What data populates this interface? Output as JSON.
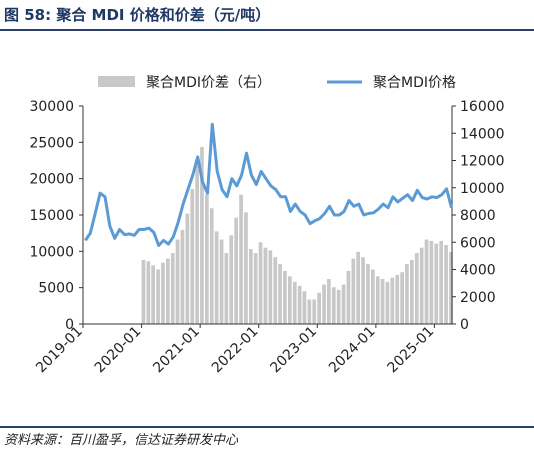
{
  "figure": {
    "title": "图 58:  聚合 MDI 价格和价差（元/吨）",
    "source": "资料来源：百川盈孚，信达证券研发中心"
  },
  "chart_data": {
    "type": "bar+line",
    "legend_position": "top",
    "grid": false,
    "x_ticks": [
      "2019-01",
      "2020-01",
      "2021-01",
      "2022-01",
      "2023-01",
      "2024-01",
      "2025-01"
    ],
    "x_range": [
      "2019-01",
      "2025-04"
    ],
    "y_left": {
      "label": "",
      "lim": [
        0,
        30000
      ],
      "ticks": [
        "0",
        "5000",
        "10000",
        "15000",
        "20000",
        "25000",
        "30000"
      ]
    },
    "y_right": {
      "label": "",
      "lim": [
        0,
        16000
      ],
      "ticks": [
        "0",
        "2000",
        "4000",
        "6000",
        "8000",
        "10000",
        "12000",
        "14000",
        "16000"
      ]
    },
    "series": [
      {
        "name": "聚合MDI价差（右）",
        "kind": "bar",
        "axis": "right",
        "color": "#c8c8c8",
        "points": [
          [
            "2020-01",
            4700
          ],
          [
            "2020-02",
            4600
          ],
          [
            "2020-03",
            4300
          ],
          [
            "2020-04",
            4000
          ],
          [
            "2020-05",
            4500
          ],
          [
            "2020-06",
            4800
          ],
          [
            "2020-07",
            5200
          ],
          [
            "2020-08",
            6200
          ],
          [
            "2020-09",
            6900
          ],
          [
            "2020-10",
            8100
          ],
          [
            "2020-11",
            9900
          ],
          [
            "2020-12",
            11800
          ],
          [
            "2021-01",
            13000
          ],
          [
            "2021-02",
            9500
          ],
          [
            "2021-03",
            8500
          ],
          [
            "2021-04",
            6800
          ],
          [
            "2021-05",
            6200
          ],
          [
            "2021-06",
            5200
          ],
          [
            "2021-07",
            6500
          ],
          [
            "2021-08",
            7800
          ],
          [
            "2021-09",
            9500
          ],
          [
            "2021-10",
            8200
          ],
          [
            "2021-11",
            5500
          ],
          [
            "2021-12",
            5200
          ],
          [
            "2022-01",
            6000
          ],
          [
            "2022-02",
            5600
          ],
          [
            "2022-03",
            5400
          ],
          [
            "2022-04",
            4900
          ],
          [
            "2022-05",
            4400
          ],
          [
            "2022-06",
            3900
          ],
          [
            "2022-07",
            3500
          ],
          [
            "2022-08",
            3100
          ],
          [
            "2022-09",
            2800
          ],
          [
            "2022-10",
            2400
          ],
          [
            "2022-11",
            1800
          ],
          [
            "2022-12",
            1800
          ],
          [
            "2023-01",
            2300
          ],
          [
            "2023-02",
            2900
          ],
          [
            "2023-03",
            3300
          ],
          [
            "2023-04",
            2700
          ],
          [
            "2023-05",
            2500
          ],
          [
            "2023-06",
            2900
          ],
          [
            "2023-07",
            3900
          ],
          [
            "2023-08",
            4800
          ],
          [
            "2023-09",
            5300
          ],
          [
            "2023-10",
            4900
          ],
          [
            "2023-11",
            4400
          ],
          [
            "2023-12",
            4000
          ],
          [
            "2024-01",
            3500
          ],
          [
            "2024-02",
            3300
          ],
          [
            "2024-03",
            3100
          ],
          [
            "2024-04",
            3400
          ],
          [
            "2024-05",
            3600
          ],
          [
            "2024-06",
            3800
          ],
          [
            "2024-07",
            4400
          ],
          [
            "2024-08",
            4700
          ],
          [
            "2024-09",
            5200
          ],
          [
            "2024-10",
            5600
          ],
          [
            "2024-11",
            6200
          ],
          [
            "2024-12",
            6100
          ],
          [
            "2025-01",
            5900
          ],
          [
            "2025-02",
            6100
          ],
          [
            "2025-03",
            5800
          ],
          [
            "2025-04",
            5300
          ]
        ]
      },
      {
        "name": "聚合MDI价格",
        "kind": "line",
        "axis": "left",
        "color": "#5b9bd5",
        "points": [
          [
            "2019-01",
            11500
          ],
          [
            "2019-02",
            12500
          ],
          [
            "2019-03",
            15200
          ],
          [
            "2019-04",
            18000
          ],
          [
            "2019-05",
            17500
          ],
          [
            "2019-06",
            13500
          ],
          [
            "2019-07",
            11800
          ],
          [
            "2019-08",
            13000
          ],
          [
            "2019-09",
            12300
          ],
          [
            "2019-10",
            12400
          ],
          [
            "2019-11",
            12200
          ],
          [
            "2019-12",
            13000
          ],
          [
            "2020-01",
            13000
          ],
          [
            "2020-02",
            13200
          ],
          [
            "2020-03",
            12600
          ],
          [
            "2020-04",
            10800
          ],
          [
            "2020-05",
            11500
          ],
          [
            "2020-06",
            11000
          ],
          [
            "2020-07",
            12000
          ],
          [
            "2020-08",
            14000
          ],
          [
            "2020-09",
            16500
          ],
          [
            "2020-10",
            18500
          ],
          [
            "2020-11",
            20500
          ],
          [
            "2020-12",
            23000
          ],
          [
            "2021-01",
            19500
          ],
          [
            "2021-02",
            18000
          ],
          [
            "2021-03",
            27500
          ],
          [
            "2021-04",
            21000
          ],
          [
            "2021-05",
            18500
          ],
          [
            "2021-06",
            17500
          ],
          [
            "2021-07",
            20000
          ],
          [
            "2021-08",
            19000
          ],
          [
            "2021-09",
            20500
          ],
          [
            "2021-10",
            23500
          ],
          [
            "2021-11",
            20500
          ],
          [
            "2021-12",
            19200
          ],
          [
            "2022-01",
            21000
          ],
          [
            "2022-02",
            20000
          ],
          [
            "2022-03",
            19000
          ],
          [
            "2022-04",
            18500
          ],
          [
            "2022-05",
            17500
          ],
          [
            "2022-06",
            17500
          ],
          [
            "2022-07",
            15500
          ],
          [
            "2022-08",
            16500
          ],
          [
            "2022-09",
            15500
          ],
          [
            "2022-10",
            15000
          ],
          [
            "2022-11",
            13800
          ],
          [
            "2022-12",
            14200
          ],
          [
            "2023-01",
            14500
          ],
          [
            "2023-02",
            15200
          ],
          [
            "2023-03",
            16200
          ],
          [
            "2023-04",
            15000
          ],
          [
            "2023-05",
            15000
          ],
          [
            "2023-06",
            15500
          ],
          [
            "2023-07",
            17000
          ],
          [
            "2023-08",
            16200
          ],
          [
            "2023-09",
            16500
          ],
          [
            "2023-10",
            15000
          ],
          [
            "2023-11",
            15200
          ],
          [
            "2023-12",
            15300
          ],
          [
            "2024-01",
            15800
          ],
          [
            "2024-02",
            16500
          ],
          [
            "2024-03",
            16000
          ],
          [
            "2024-04",
            17500
          ],
          [
            "2024-05",
            16800
          ],
          [
            "2024-06",
            17300
          ],
          [
            "2024-07",
            17800
          ],
          [
            "2024-08",
            17000
          ],
          [
            "2024-09",
            18400
          ],
          [
            "2024-10",
            17400
          ],
          [
            "2024-11",
            17200
          ],
          [
            "2024-12",
            17500
          ],
          [
            "2025-01",
            17400
          ],
          [
            "2025-02",
            17800
          ],
          [
            "2025-03",
            18600
          ],
          [
            "2025-04",
            16000
          ]
        ]
      }
    ]
  }
}
